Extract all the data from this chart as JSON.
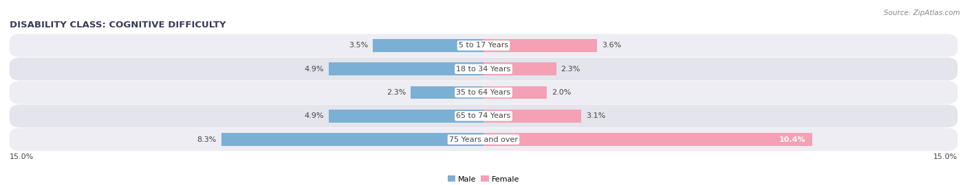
{
  "title": "DISABILITY CLASS: COGNITIVE DIFFICULTY",
  "source": "Source: ZipAtlas.com",
  "categories": [
    "5 to 17 Years",
    "18 to 34 Years",
    "35 to 64 Years",
    "65 to 74 Years",
    "75 Years and over"
  ],
  "male_values": [
    3.5,
    4.9,
    2.3,
    4.9,
    8.3
  ],
  "female_values": [
    3.6,
    2.3,
    2.0,
    3.1,
    10.4
  ],
  "male_color": "#7bafd4",
  "female_color": "#f4a0b5",
  "axis_max": 15.0,
  "axis_label_left": "15.0%",
  "axis_label_right": "15.0%",
  "title_fontsize": 9.5,
  "label_fontsize": 8,
  "bar_height": 0.55,
  "row_bg_even": "#ededf3",
  "row_bg_odd": "#e4e4ec",
  "fig_bg": "#ffffff",
  "legend_male": "Male",
  "legend_female": "Female",
  "title_color": "#3a3a5c",
  "text_color": "#444444",
  "white_text_color": "#ffffff"
}
